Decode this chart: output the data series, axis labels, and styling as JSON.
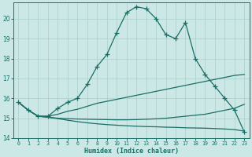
{
  "xlabel": "Humidex (Indice chaleur)",
  "bg_color": "#cce8e6",
  "line_color": "#1a6e65",
  "grid_color": "#aacfcc",
  "xlim": [
    -0.5,
    23.5
  ],
  "ylim": [
    14,
    20.8
  ],
  "yticks": [
    14,
    15,
    16,
    17,
    18,
    19,
    20
  ],
  "xticks": [
    0,
    1,
    2,
    3,
    4,
    5,
    6,
    7,
    8,
    9,
    10,
    11,
    12,
    13,
    14,
    15,
    16,
    17,
    18,
    19,
    20,
    21,
    22,
    23
  ],
  "line1_x": [
    0,
    1,
    2,
    3,
    4,
    5,
    6,
    7,
    8,
    9,
    10,
    11,
    12,
    13,
    14,
    15,
    16,
    17,
    18,
    19,
    20,
    21,
    22,
    23
  ],
  "line1_y": [
    15.8,
    15.4,
    15.1,
    15.1,
    15.5,
    15.8,
    16.0,
    16.7,
    17.6,
    18.2,
    19.3,
    20.3,
    20.6,
    20.5,
    20.0,
    19.2,
    19.0,
    19.8,
    18.0,
    17.2,
    16.6,
    16.0,
    15.4,
    14.3
  ],
  "line2_x": [
    0,
    1,
    2,
    3,
    4,
    5,
    6,
    7,
    8,
    9,
    10,
    11,
    12,
    13,
    14,
    15,
    16,
    17,
    18,
    19,
    20,
    21,
    22,
    23
  ],
  "line2_y": [
    15.8,
    15.4,
    15.1,
    15.1,
    15.2,
    15.35,
    15.45,
    15.6,
    15.75,
    15.85,
    15.95,
    16.05,
    16.15,
    16.25,
    16.35,
    16.45,
    16.55,
    16.65,
    16.75,
    16.85,
    16.95,
    17.05,
    17.15,
    17.2
  ],
  "line3_x": [
    0,
    1,
    2,
    3,
    4,
    5,
    6,
    7,
    8,
    9,
    10,
    11,
    12,
    13,
    14,
    15,
    16,
    17,
    18,
    19,
    20,
    21,
    22,
    23
  ],
  "line3_y": [
    15.8,
    15.4,
    15.1,
    15.05,
    15.0,
    14.98,
    14.96,
    14.95,
    14.94,
    14.93,
    14.92,
    14.92,
    14.93,
    14.95,
    14.97,
    15.0,
    15.05,
    15.1,
    15.15,
    15.2,
    15.3,
    15.4,
    15.5,
    15.7
  ],
  "line4_x": [
    0,
    1,
    2,
    3,
    4,
    5,
    6,
    7,
    8,
    9,
    10,
    11,
    12,
    13,
    14,
    15,
    16,
    17,
    18,
    19,
    20,
    21,
    22,
    23
  ],
  "line4_y": [
    15.8,
    15.4,
    15.1,
    15.05,
    14.98,
    14.9,
    14.83,
    14.77,
    14.72,
    14.68,
    14.65,
    14.62,
    14.6,
    14.58,
    14.57,
    14.55,
    14.54,
    14.52,
    14.51,
    14.5,
    14.48,
    14.46,
    14.43,
    14.35
  ]
}
